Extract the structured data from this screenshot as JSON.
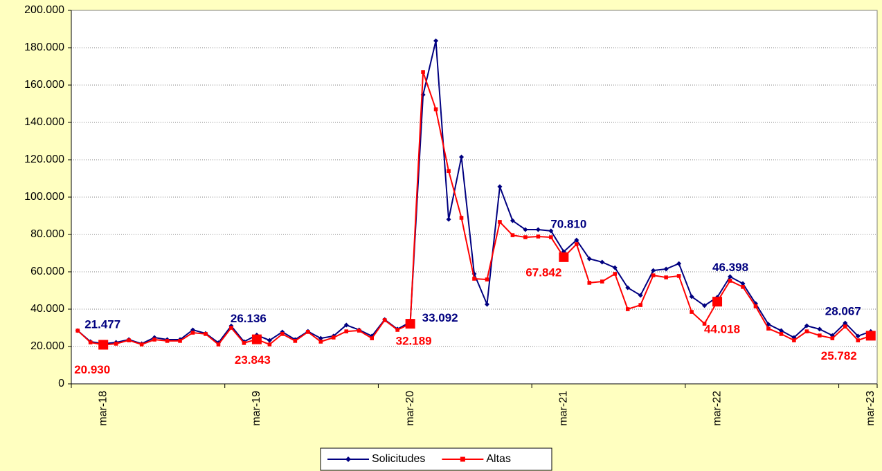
{
  "chart_data": {
    "type": "line",
    "categories": [
      null,
      null,
      "mar-18",
      null,
      null,
      null,
      null,
      null,
      null,
      null,
      null,
      null,
      null,
      null,
      "mar-19",
      null,
      null,
      null,
      null,
      null,
      null,
      null,
      null,
      null,
      null,
      null,
      "mar-20",
      null,
      null,
      null,
      null,
      null,
      null,
      null,
      null,
      null,
      null,
      null,
      "mar-21",
      null,
      null,
      null,
      null,
      null,
      null,
      null,
      null,
      null,
      null,
      null,
      "mar-22",
      null,
      null,
      null,
      null,
      null,
      null,
      null,
      null,
      null,
      null,
      null,
      "mar-23"
    ],
    "series": [
      {
        "name": "Solicitudes",
        "color": "#000080",
        "marker": "diamond",
        "values": [
          28500,
          22600,
          21477,
          22200,
          23700,
          21500,
          24800,
          23700,
          23700,
          28900,
          27000,
          22000,
          31000,
          22600,
          26136,
          23300,
          27800,
          23700,
          28100,
          24400,
          25600,
          31500,
          28900,
          25600,
          34400,
          29300,
          33092,
          154800,
          183700,
          88100,
          121500,
          58900,
          42600,
          105600,
          87400,
          82600,
          82600,
          81900,
          70810,
          77000,
          67000,
          65200,
          62200,
          51500,
          47400,
          60700,
          61500,
          64400,
          46700,
          41900,
          46398,
          57400,
          53700,
          43000,
          31900,
          28500,
          24800,
          31100,
          29300,
          25900,
          32600,
          25600,
          28067
        ],
        "value_labels": [
          null,
          null,
          "21.477",
          null,
          null,
          null,
          null,
          null,
          null,
          null,
          null,
          null,
          null,
          null,
          "26.136",
          null,
          null,
          null,
          null,
          null,
          null,
          null,
          null,
          null,
          null,
          null,
          "33.092",
          null,
          null,
          null,
          null,
          null,
          null,
          null,
          null,
          null,
          null,
          null,
          "70.810",
          null,
          null,
          null,
          null,
          null,
          null,
          null,
          null,
          null,
          null,
          null,
          "46.398",
          null,
          null,
          null,
          null,
          null,
          null,
          null,
          null,
          null,
          null,
          null,
          "28.067"
        ]
      },
      {
        "name": "Altas",
        "color": "#ff0000",
        "marker": "square",
        "values": [
          28500,
          22200,
          20930,
          21500,
          23300,
          21100,
          23700,
          23000,
          23000,
          27400,
          26700,
          21100,
          30000,
          21900,
          23843,
          21100,
          26700,
          23000,
          27800,
          22600,
          24800,
          28100,
          28500,
          24400,
          34100,
          28900,
          32189,
          167000,
          147000,
          114000,
          88900,
          56300,
          55900,
          86700,
          79600,
          78500,
          78900,
          78500,
          67842,
          74800,
          54100,
          54800,
          58900,
          40000,
          42200,
          58100,
          57000,
          57800,
          38500,
          32200,
          44018,
          55200,
          51900,
          41500,
          29600,
          26700,
          23300,
          28100,
          25900,
          24400,
          30700,
          23300,
          25782
        ],
        "value_labels": [
          null,
          null,
          "20.930",
          null,
          null,
          null,
          null,
          null,
          null,
          null,
          null,
          null,
          null,
          null,
          "23.843",
          null,
          null,
          null,
          null,
          null,
          null,
          null,
          null,
          null,
          null,
          null,
          "32.189",
          null,
          null,
          null,
          null,
          null,
          null,
          null,
          null,
          null,
          null,
          null,
          "67.842",
          null,
          null,
          null,
          null,
          null,
          null,
          null,
          null,
          null,
          null,
          null,
          "44.018",
          null,
          null,
          null,
          null,
          null,
          null,
          null,
          null,
          null,
          null,
          null,
          "25.782"
        ]
      }
    ],
    "ylim": [
      0,
      200000
    ],
    "yticks": [
      0,
      {
        "value": 20000,
        "label": "20.000"
      },
      {
        "value": 40000,
        "label": "40.000"
      },
      {
        "value": 60000,
        "label": "60.000"
      },
      {
        "value": 80000,
        "label": "80.000"
      },
      {
        "value": 100000,
        "label": "100.000"
      },
      {
        "value": 120000,
        "label": "120.000"
      },
      {
        "value": 140000,
        "label": "140.000"
      },
      {
        "value": 160000,
        "label": "160.000"
      },
      {
        "value": 180000,
        "label": "180.000"
      },
      {
        "value": 200000,
        "label": "200.000"
      }
    ],
    "grid": true,
    "legend": "bottom"
  }
}
